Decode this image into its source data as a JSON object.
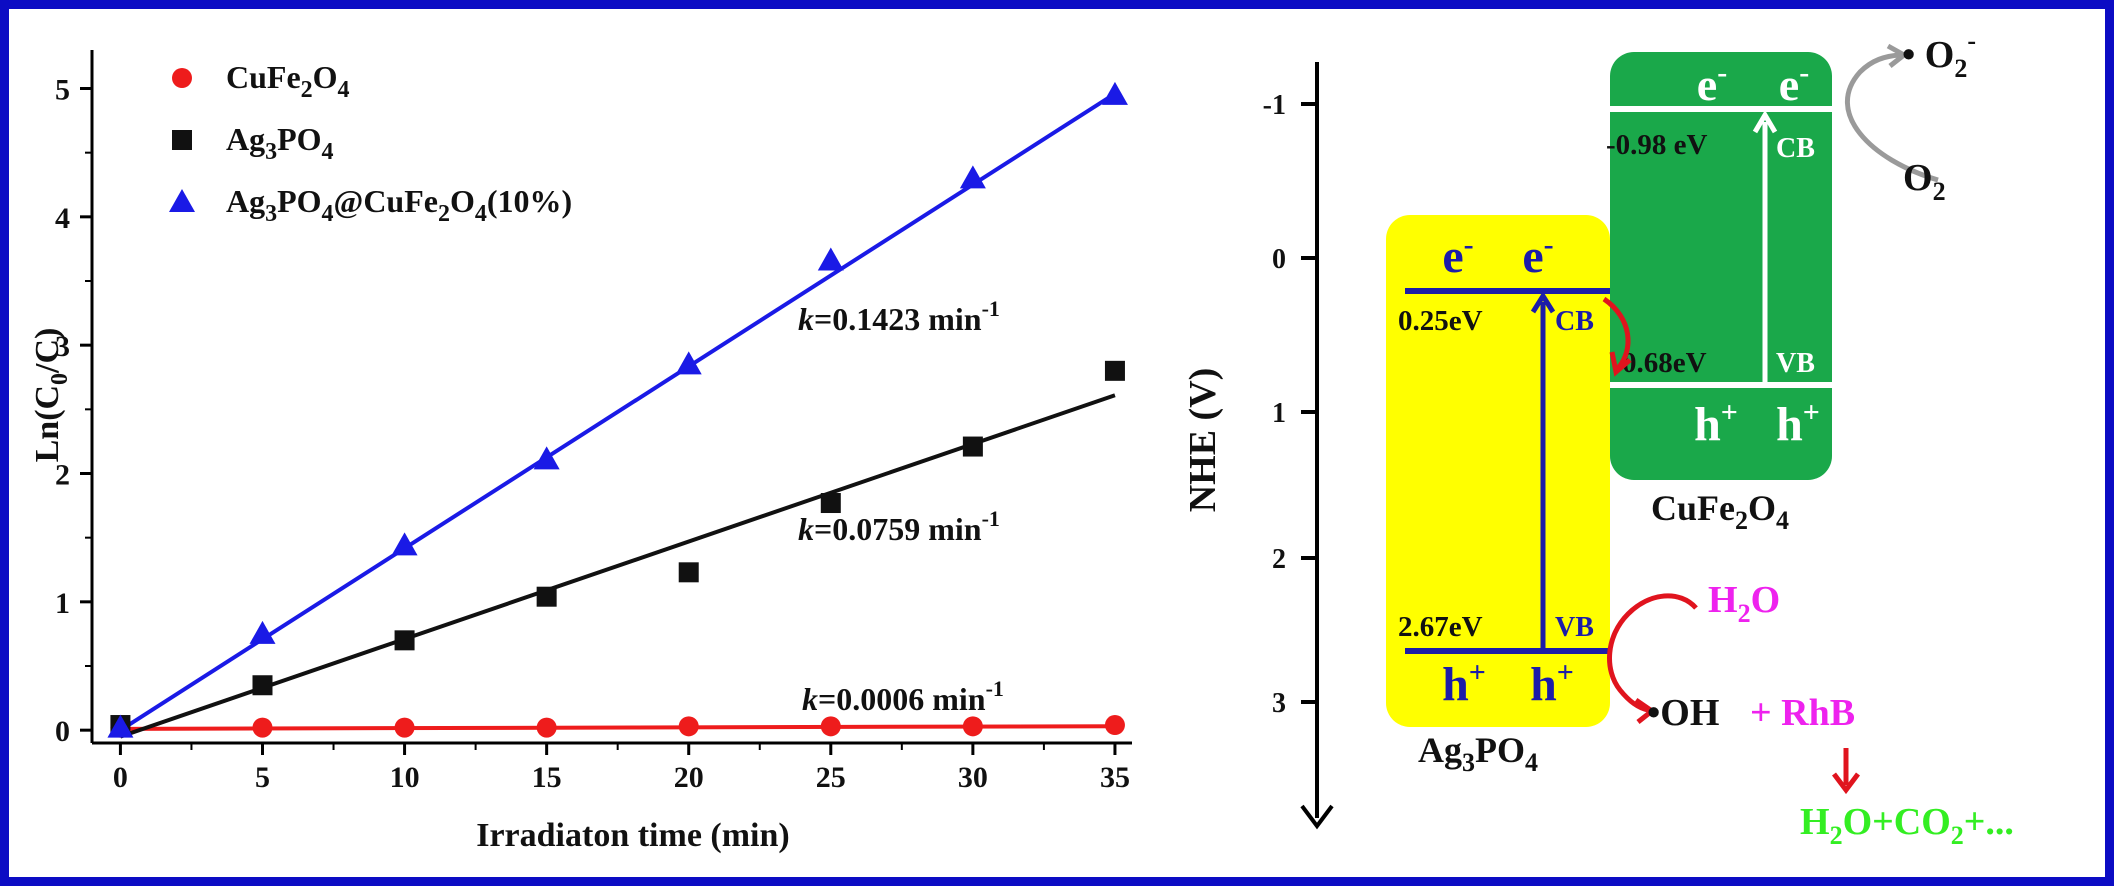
{
  "chart_data": {
    "type": "scatter",
    "xlabel": "Irradiaton time (min)",
    "ylabel_main": "Ln(C",
    "ylabel_sub": "0",
    "ylabel_end": "/C)",
    "xlim": [
      -1,
      35.6
    ],
    "ylim": [
      -0.1,
      5.3
    ],
    "x_ticks": [
      0,
      5,
      10,
      15,
      20,
      25,
      30,
      35
    ],
    "y_ticks": [
      0,
      1,
      2,
      3,
      4,
      5
    ],
    "legend_position": "top-left",
    "x": [
      0,
      5,
      10,
      15,
      20,
      25,
      30,
      35
    ],
    "series": [
      {
        "name": "CuFe2O4",
        "legend_parts": [
          [
            "CuFe",
            ""
          ],
          [
            "2",
            "sub"
          ],
          [
            "O",
            ""
          ],
          [
            "4",
            "sub"
          ]
        ],
        "marker": "circle",
        "color": "#ee1c1c",
        "values": [
          0.02,
          0.02,
          0.02,
          0.02,
          0.03,
          0.03,
          0.03,
          0.04
        ],
        "fit": [
          0.01,
          0.031
        ],
        "k_label": "=0.0006 min",
        "k_exp": "-1"
      },
      {
        "name": "Ag3PO4",
        "legend_parts": [
          [
            "Ag",
            ""
          ],
          [
            "3",
            "sub"
          ],
          [
            "PO",
            ""
          ],
          [
            "4",
            "sub"
          ]
        ],
        "marker": "square",
        "color": "#111111",
        "values": [
          0.04,
          0.35,
          0.7,
          1.04,
          1.23,
          1.77,
          2.21,
          2.8
        ],
        "fit": [
          -0.05,
          2.61
        ],
        "k_label": "=0.0759 min",
        "k_exp": "-1"
      },
      {
        "name": "Ag3PO4@CuFe2O4(10%)",
        "legend_parts": [
          [
            "Ag",
            ""
          ],
          [
            "3",
            "sub"
          ],
          [
            "PO",
            ""
          ],
          [
            "4",
            "sub"
          ],
          [
            "@CuFe",
            ""
          ],
          [
            "2",
            "sub"
          ],
          [
            "O",
            ""
          ],
          [
            "4",
            "sub"
          ],
          [
            "(10%)",
            ""
          ]
        ],
        "marker": "triangle",
        "color": "#1a1ae6",
        "values": [
          0.02,
          0.75,
          1.44,
          2.11,
          2.85,
          3.66,
          4.3,
          4.95
        ],
        "fit": [
          0.0,
          4.96
        ],
        "k_label": "=0.1423 min",
        "k_exp": "-1"
      }
    ],
    "k_symbol": "k"
  },
  "diagram": {
    "axis_label": "NHE (V)",
    "axis_ticks": [
      "-1",
      "0",
      "1",
      "2",
      "3"
    ],
    "ag3po4": {
      "name_parts": [
        [
          "Ag",
          ""
        ],
        [
          "3",
          "sub"
        ],
        [
          "PO",
          ""
        ],
        [
          "4",
          "sub"
        ]
      ],
      "cb_value": "0.25eV",
      "vb_value": "2.67eV",
      "cb_label": "CB",
      "vb_label": "VB",
      "color": "#ffff00"
    },
    "cufe2o4": {
      "name_parts": [
        [
          "CuFe",
          ""
        ],
        [
          "2",
          "sub"
        ],
        [
          "O",
          ""
        ],
        [
          "4",
          "sub"
        ]
      ],
      "cb_value": "-0.98 eV",
      "vb_value": "0.68eV",
      "cb_label": "CB",
      "vb_label": "VB",
      "color": "#1aa84a"
    },
    "electron": "e",
    "electron_sup": "-",
    "hole": "h",
    "hole_sup": "+",
    "o2_radical": "• O",
    "o2_radical_sub": "2",
    "o2_radical_sup": "-",
    "o2": "O",
    "o2_sub": "2",
    "h2o_h": "H",
    "h2o_sub": "2",
    "h2o_o": "O",
    "oh_radical": "•OH",
    "plus_rhb": "+ RhB",
    "products": "H",
    "products_sub": "2",
    "products_mid": "O+CO",
    "products_sub2": "2",
    "products_end": "+..."
  }
}
